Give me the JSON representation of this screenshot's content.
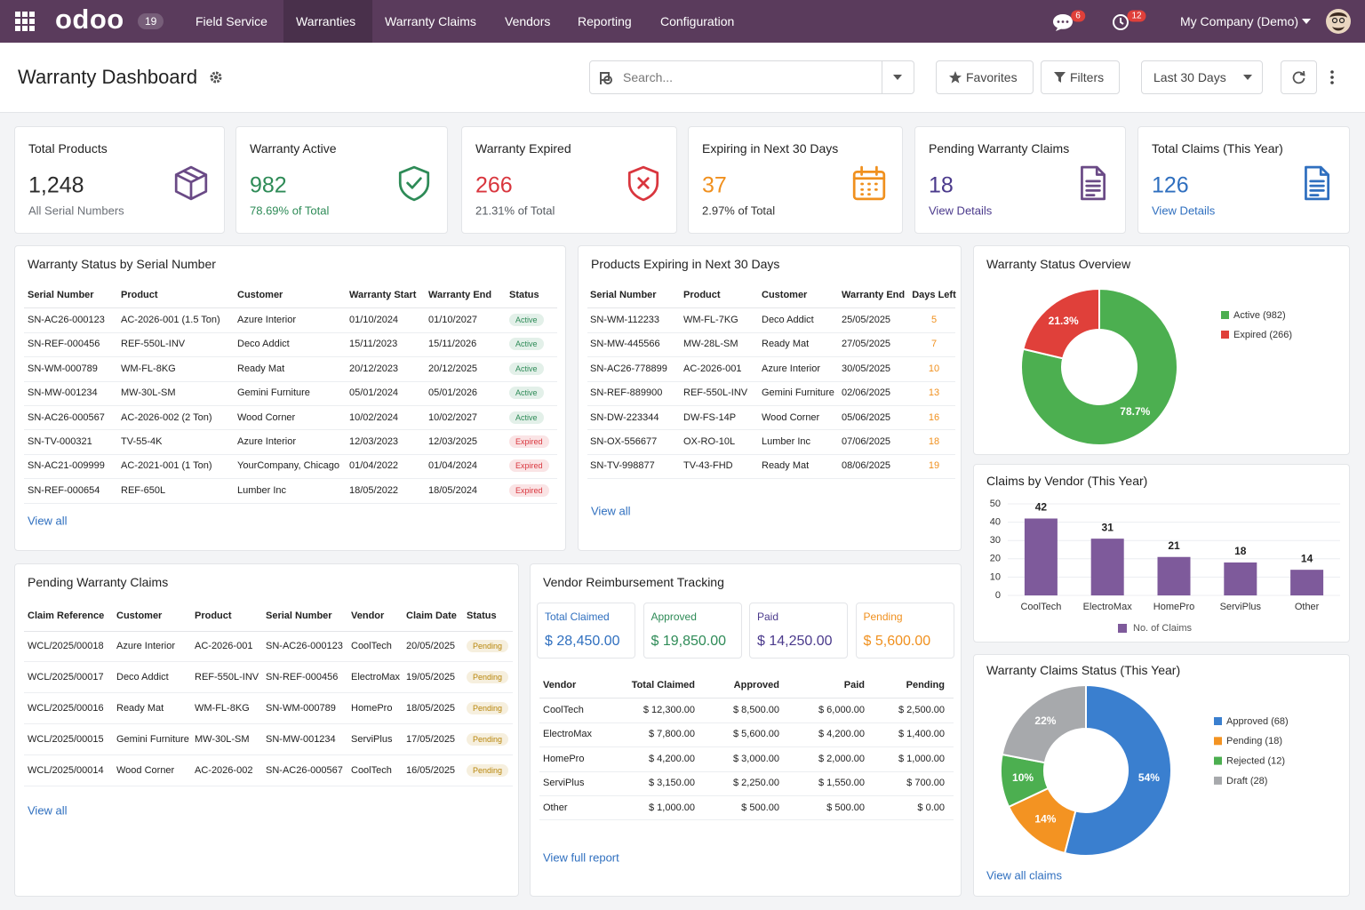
{
  "nav": {
    "brand": "odoo",
    "version": "19",
    "menu": [
      "Field Service",
      "Warranties",
      "Warranty Claims",
      "Vendors",
      "Reporting",
      "Configuration"
    ],
    "messages_count": 6,
    "activities_count": 12,
    "company": "My Company (Demo)"
  },
  "header": {
    "title": "Warranty Dashboard",
    "search_placeholder": "Search...",
    "favorites": "Favorites",
    "filters": "Filters",
    "period": "Last 30 Days"
  },
  "kpis": [
    {
      "title": "Total Products",
      "value": "1,248",
      "note": "All Serial Numbers",
      "color": "#2b2b2b",
      "note_color": "#6b6f76",
      "icon_color": "#6a4a86"
    },
    {
      "title": "Warranty Active",
      "value": "982",
      "note": "78.69% of Total",
      "color": "#2e8b57",
      "note_color": "#2e8b57",
      "icon_color": "#2e8b57"
    },
    {
      "title": "Warranty Expired",
      "value": "266",
      "note": "21.31% of Total",
      "color": "#d9363e",
      "note_color": "#555a60",
      "icon_color": "#d9363e"
    },
    {
      "title": "Expiring in Next 30 Days",
      "value": "37",
      "note": "2.97% of Total",
      "color": "#f0901e",
      "note_color": "#333",
      "icon_color": "#f0901e"
    },
    {
      "title": "Pending Warranty Claims",
      "value": "18",
      "note": "View Details",
      "color": "#4b3a8c",
      "note_color": "#4b3a8c",
      "icon_color": "#6a4a86"
    },
    {
      "title": "Total Claims (This Year)",
      "value": "126",
      "note": "View Details",
      "color": "#2f6fbf",
      "note_color": "#2f6fbf",
      "icon_color": "#2f6fbf"
    }
  ],
  "status_table": {
    "title": "Warranty Status by Serial Number",
    "columns": [
      "Serial Number",
      "Product",
      "Customer",
      "Warranty Start",
      "Warranty End",
      "Status"
    ],
    "rows": [
      [
        "SN-AC26-000123",
        "AC-2026-001 (1.5 Ton)",
        "Azure Interior",
        "01/10/2024",
        "01/10/2027",
        "Active"
      ],
      [
        "SN-REF-000456",
        "REF-550L-INV",
        "Deco Addict",
        "15/11/2023",
        "15/11/2026",
        "Active"
      ],
      [
        "SN-WM-000789",
        "WM-FL-8KG",
        "Ready Mat",
        "20/12/2023",
        "20/12/2025",
        "Active"
      ],
      [
        "SN-MW-001234",
        "MW-30L-SM",
        "Gemini Furniture",
        "05/01/2024",
        "05/01/2026",
        "Active"
      ],
      [
        "SN-AC26-000567",
        "AC-2026-002 (2 Ton)",
        "Wood Corner",
        "10/02/2024",
        "10/02/2027",
        "Active"
      ],
      [
        "SN-TV-000321",
        "TV-55-4K",
        "Azure Interior",
        "12/03/2023",
        "12/03/2025",
        "Expired"
      ],
      [
        "SN-AC21-009999",
        "AC-2021-001 (1 Ton)",
        "YourCompany, Chicago",
        "01/04/2022",
        "01/04/2024",
        "Expired"
      ],
      [
        "SN-REF-000654",
        "REF-650L",
        "Lumber Inc",
        "18/05/2022",
        "18/05/2024",
        "Expired"
      ]
    ],
    "status_colors": {
      "Active": "#2e8b57",
      "Expired": "#d9363e"
    },
    "link": "View all"
  },
  "expiring_table": {
    "title": "Products Expiring in Next 30 Days",
    "columns": [
      "Serial Number",
      "Product",
      "Customer",
      "Warranty End",
      "Days Left"
    ],
    "rows": [
      [
        "SN-WM-112233",
        "WM-FL-7KG",
        "Deco Addict",
        "25/05/2025",
        "5"
      ],
      [
        "SN-MW-445566",
        "MW-28L-SM",
        "Ready Mat",
        "27/05/2025",
        "7"
      ],
      [
        "SN-AC26-778899",
        "AC-2026-001",
        "Azure Interior",
        "30/05/2025",
        "10"
      ],
      [
        "SN-REF-889900",
        "REF-550L-INV",
        "Gemini Furniture",
        "02/06/2025",
        "13"
      ],
      [
        "SN-DW-223344",
        "DW-FS-14P",
        "Wood Corner",
        "05/06/2025",
        "16"
      ],
      [
        "SN-OX-556677",
        "OX-RO-10L",
        "Lumber Inc",
        "07/06/2025",
        "18"
      ],
      [
        "SN-TV-998877",
        "TV-43-FHD",
        "Ready Mat",
        "08/06/2025",
        "19"
      ]
    ],
    "days_color": "#f0901e",
    "link": "View all"
  },
  "status_overview": {
    "type": "pie",
    "title": "Warranty Status Overview",
    "categories": [
      "Active (982)",
      "Expired (266)"
    ],
    "values": [
      78.7,
      21.3
    ],
    "value_labels": [
      "78.7%",
      "21.3%"
    ],
    "colors": [
      "#4caf50",
      "#e0403a"
    ]
  },
  "vendor_claims": {
    "type": "bar",
    "title": "Claims by Vendor (This Year)",
    "categories": [
      "CoolTech",
      "ElectroMax",
      "HomePro",
      "ServiPlus",
      "Other"
    ],
    "series": [
      {
        "name": "No. of Claims",
        "color": "#7e5a9b",
        "values": [
          42,
          31,
          21,
          18,
          14
        ]
      }
    ],
    "ylim": [
      0,
      50
    ],
    "yticks": [
      0,
      10,
      20,
      30,
      40,
      50
    ],
    "grid": true
  },
  "pending_table": {
    "title": "Pending Warranty Claims",
    "columns": [
      "Claim Reference",
      "Customer",
      "Product",
      "Serial Number",
      "Vendor",
      "Claim Date",
      "Status"
    ],
    "rows": [
      [
        "WCL/2025/00018",
        "Azure Interior",
        "AC-2026-001",
        "SN-AC26-000123",
        "CoolTech",
        "20/05/2025",
        "Pending"
      ],
      [
        "WCL/2025/00017",
        "Deco Addict",
        "REF-550L-INV",
        "SN-REF-000456",
        "ElectroMax",
        "19/05/2025",
        "Pending"
      ],
      [
        "WCL/2025/00016",
        "Ready Mat",
        "WM-FL-8KG",
        "SN-WM-000789",
        "HomePro",
        "18/05/2025",
        "Pending"
      ],
      [
        "WCL/2025/00015",
        "Gemini Furniture",
        "MW-30L-SM",
        "SN-MW-001234",
        "ServiPlus",
        "17/05/2025",
        "Pending"
      ],
      [
        "WCL/2025/00014",
        "Wood Corner",
        "AC-2026-002",
        "SN-AC26-000567",
        "CoolTech",
        "16/05/2025",
        "Pending"
      ]
    ],
    "status_colors": {
      "Pending": "#b8860b"
    },
    "link": "View all"
  },
  "reimbursement": {
    "title": "Vendor Reimbursement Tracking",
    "cards": [
      {
        "label": "Total Claimed",
        "value": "$ 28,450.00",
        "color": "#2f6fbf"
      },
      {
        "label": "Approved",
        "value": "$ 19,850.00",
        "color": "#2e8b57"
      },
      {
        "label": "Paid",
        "value": "$ 14,250.00",
        "color": "#4b3a8c"
      },
      {
        "label": "Pending",
        "value": "$ 5,600.00",
        "color": "#f0901e"
      }
    ],
    "columns": [
      "Vendor",
      "Total Claimed",
      "Approved",
      "Paid",
      "Pending"
    ],
    "rows": [
      [
        "CoolTech",
        "$ 12,300.00",
        "$ 8,500.00",
        "$ 6,000.00",
        "$ 2,500.00"
      ],
      [
        "ElectroMax",
        "$ 7,800.00",
        "$ 5,600.00",
        "$ 4,200.00",
        "$ 1,400.00"
      ],
      [
        "HomePro",
        "$ 4,200.00",
        "$ 3,000.00",
        "$ 2,000.00",
        "$ 1,000.00"
      ],
      [
        "ServiPlus",
        "$ 3,150.00",
        "$ 2,250.00",
        "$ 1,550.00",
        "$ 700.00"
      ],
      [
        "Other",
        "$ 1,000.00",
        "$ 500.00",
        "$ 500.00",
        "$ 0.00"
      ]
    ],
    "link": "View full report"
  },
  "claims_status": {
    "type": "pie",
    "title": "Warranty Claims Status (This Year)",
    "categories": [
      "Approved (68)",
      "Pending (18)",
      "Rejected (12)",
      "Draft (28)"
    ],
    "values": [
      54,
      14,
      10,
      22
    ],
    "value_labels": [
      "54%",
      "14%",
      "10%",
      "22%"
    ],
    "colors": [
      "#3a7fcf",
      "#f39322",
      "#4caf50",
      "#a7a9ac"
    ],
    "link": "View all claims"
  }
}
